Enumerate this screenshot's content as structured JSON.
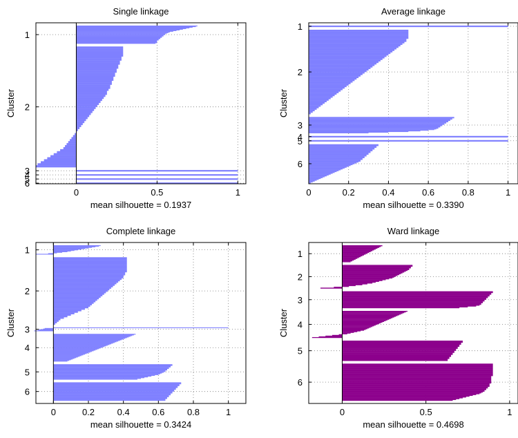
{
  "chart_data": [
    {
      "type": "bar",
      "orientation": "horizontal",
      "title": "Single linkage",
      "xlabel": "mean silhouette = 0.1937",
      "ylabel": "Cluster",
      "xlim": [
        -0.25,
        1.05
      ],
      "xticks": [
        0,
        0.5,
        1
      ],
      "xtick_labels": [
        "0",
        "0.5",
        "1"
      ],
      "grid": true,
      "bar_color": "#7f80ff",
      "clusters": [
        {
          "label": "1",
          "count": 27,
          "values_sorted": [
            0.75,
            0.74,
            0.72,
            0.7,
            0.68,
            0.66,
            0.64,
            0.62,
            0.6,
            0.58,
            0.57,
            0.56,
            0.55,
            0.55,
            0.54,
            0.54,
            0.53,
            0.53,
            0.52,
            0.52,
            0.51,
            0.51,
            0.5,
            0.5,
            0.5,
            0.5,
            0.49
          ]
        },
        {
          "label": "2",
          "count": 180,
          "values_sorted": [
            0.29,
            0.29,
            0.29,
            0.29,
            0.29,
            0.28,
            0.28,
            0.27,
            0.27,
            0.26,
            0.26,
            0.25,
            0.25,
            0.24,
            0.24,
            0.23,
            0.23,
            0.22,
            0.22,
            0.21,
            0.21,
            0.2,
            0.19,
            0.19,
            0.18,
            0.17,
            0.16,
            0.15,
            0.14,
            0.13,
            0.12,
            0.11,
            0.1,
            0.09,
            0.08,
            0.07,
            0.06,
            0.05,
            0.04,
            0.03,
            0.02,
            0.01,
            0.0,
            -0.01,
            -0.02,
            -0.03,
            -0.04,
            -0.05,
            -0.06,
            -0.07,
            -0.08,
            -0.1,
            -0.12,
            -0.14,
            -0.16,
            -0.18,
            -0.2,
            -0.22,
            -0.24,
            -0.25
          ]
        },
        {
          "label": "3",
          "count": 1,
          "values_sorted": [
            1.0
          ]
        },
        {
          "label": "4",
          "count": 1,
          "values_sorted": [
            1.0
          ]
        },
        {
          "label": "5",
          "count": 1,
          "values_sorted": [
            1.0
          ]
        },
        {
          "label": "6",
          "count": 1,
          "values_sorted": [
            1.0
          ]
        }
      ]
    },
    {
      "type": "bar",
      "orientation": "horizontal",
      "title": "Average linkage",
      "xlabel": "mean silhouette = 0.3390",
      "ylabel": "Cluster",
      "xlim": [
        0,
        1.05
      ],
      "xticks": [
        0,
        0.2,
        0.4,
        0.6,
        0.8,
        1
      ],
      "xtick_labels": [
        "0",
        "0.2",
        "0.4",
        "0.6",
        "0.8",
        "1"
      ],
      "grid": true,
      "bar_color": "#7f80ff",
      "clusters": [
        {
          "label": "1",
          "count": 1,
          "values_sorted": [
            1.0
          ]
        },
        {
          "label": "2",
          "count": 130,
          "values_sorted": [
            0.5,
            0.5,
            0.5,
            0.5,
            0.5,
            0.5,
            0.49,
            0.49,
            0.48,
            0.47,
            0.46,
            0.45,
            0.44,
            0.43,
            0.42,
            0.41,
            0.4,
            0.39,
            0.38,
            0.37,
            0.36,
            0.35,
            0.34,
            0.33,
            0.32,
            0.31,
            0.3,
            0.29,
            0.28,
            0.27,
            0.26,
            0.25,
            0.24,
            0.23,
            0.22,
            0.21,
            0.2,
            0.19,
            0.18,
            0.17,
            0.16,
            0.15,
            0.14,
            0.13,
            0.12,
            0.11,
            0.1,
            0.09,
            0.08,
            0.07,
            0.06,
            0.05,
            0.04,
            0.03,
            0.02,
            0.01
          ]
        },
        {
          "label": "3",
          "count": 25,
          "values_sorted": [
            0.73,
            0.73,
            0.72,
            0.72,
            0.71,
            0.71,
            0.7,
            0.7,
            0.69,
            0.69,
            0.68,
            0.68,
            0.67,
            0.67,
            0.66,
            0.66,
            0.65,
            0.65,
            0.64,
            0.63,
            0.6,
            0.56,
            0.5,
            0.4,
            0.3
          ]
        },
        {
          "label": "4",
          "count": 1,
          "values_sorted": [
            1.0
          ]
        },
        {
          "label": "5",
          "count": 1,
          "values_sorted": [
            1.0
          ]
        },
        {
          "label": "6",
          "count": 60,
          "values_sorted": [
            0.35,
            0.35,
            0.34,
            0.34,
            0.33,
            0.33,
            0.32,
            0.32,
            0.31,
            0.31,
            0.3,
            0.3,
            0.29,
            0.29,
            0.28,
            0.28,
            0.27,
            0.27,
            0.26,
            0.26,
            0.25,
            0.24,
            0.23,
            0.22,
            0.21,
            0.2,
            0.19,
            0.18,
            0.17,
            0.16,
            0.15,
            0.14,
            0.13,
            0.12,
            0.11,
            0.1,
            0.09,
            0.08,
            0.07,
            0.06,
            0.05,
            0.04,
            0.03,
            0.02,
            0.01
          ]
        }
      ]
    },
    {
      "type": "bar",
      "orientation": "horizontal",
      "title": "Complete linkage",
      "xlabel": "mean silhouette = 0.3424",
      "ylabel": "Cluster",
      "xlim": [
        -0.1,
        1.1
      ],
      "xticks": [
        0,
        0.2,
        0.4,
        0.6,
        0.8,
        1
      ],
      "xtick_labels": [
        "0",
        "0.2",
        "0.4",
        "0.6",
        "0.8",
        "1"
      ],
      "grid": true,
      "bar_color": "#7f80ff",
      "clusters": [
        {
          "label": "1",
          "count": 15,
          "values_sorted": [
            0.27,
            0.26,
            0.24,
            0.22,
            0.2,
            0.18,
            0.16,
            0.14,
            0.12,
            0.1,
            0.08,
            0.05,
            0.02,
            -0.03,
            -0.1
          ]
        },
        {
          "label": "2",
          "count": 110,
          "values_sorted": [
            0.42,
            0.42,
            0.42,
            0.42,
            0.42,
            0.42,
            0.42,
            0.42,
            0.42,
            0.42,
            0.41,
            0.41,
            0.4,
            0.4,
            0.39,
            0.38,
            0.37,
            0.36,
            0.35,
            0.34,
            0.33,
            0.32,
            0.31,
            0.3,
            0.29,
            0.28,
            0.27,
            0.26,
            0.25,
            0.24,
            0.23,
            0.22,
            0.21,
            0.2,
            0.18,
            0.16,
            0.14,
            0.12,
            0.1,
            0.08,
            0.06,
            0.04,
            0.03,
            0.02,
            0.01
          ]
        },
        {
          "label": "3",
          "count": 6,
          "values_sorted": [
            1.0,
            -0.05,
            -0.06,
            -0.08,
            -0.09,
            -0.11
          ]
        },
        {
          "label": "4",
          "count": 45,
          "values_sorted": [
            0.47,
            0.46,
            0.45,
            0.44,
            0.43,
            0.42,
            0.41,
            0.4,
            0.39,
            0.38,
            0.37,
            0.36,
            0.35,
            0.34,
            0.33,
            0.32,
            0.31,
            0.3,
            0.29,
            0.28,
            0.27,
            0.26,
            0.25,
            0.24,
            0.23,
            0.22,
            0.21,
            0.2,
            0.19,
            0.18,
            0.17,
            0.16,
            0.15,
            0.14,
            0.13,
            0.12,
            0.11,
            0.1,
            0.09,
            0.08
          ]
        },
        {
          "label": "5",
          "count": 25,
          "values_sorted": [
            0.68,
            0.68,
            0.67,
            0.67,
            0.66,
            0.66,
            0.65,
            0.65,
            0.64,
            0.64,
            0.63,
            0.62,
            0.61,
            0.6,
            0.58,
            0.56,
            0.54,
            0.52,
            0.5,
            0.48
          ]
        },
        {
          "label": "6",
          "count": 30,
          "values_sorted": [
            0.73,
            0.73,
            0.72,
            0.72,
            0.71,
            0.71,
            0.7,
            0.7,
            0.69,
            0.69,
            0.68,
            0.68,
            0.67,
            0.67,
            0.66,
            0.66,
            0.65,
            0.65,
            0.64,
            0.64
          ]
        }
      ]
    },
    {
      "type": "bar",
      "orientation": "horizontal",
      "title": "Ward linkage",
      "xlabel": "mean silhouette = 0.4698",
      "ylabel": "Cluster",
      "xlim": [
        -0.2,
        1.05
      ],
      "xticks": [
        0,
        0.5,
        1
      ],
      "xtick_labels": [
        "0",
        "0.5",
        "1"
      ],
      "grid": true,
      "bar_color": "#8c008c",
      "clusters": [
        {
          "label": "1",
          "count": 25,
          "values_sorted": [
            0.24,
            0.23,
            0.22,
            0.21,
            0.2,
            0.19,
            0.18,
            0.17,
            0.16,
            0.15,
            0.14,
            0.13,
            0.12,
            0.11,
            0.1,
            0.09,
            0.08,
            0.07,
            0.06,
            0.05
          ]
        },
        {
          "label": "2",
          "count": 35,
          "values_sorted": [
            0.42,
            0.42,
            0.41,
            0.41,
            0.4,
            0.4,
            0.39,
            0.38,
            0.37,
            0.36,
            0.35,
            0.34,
            0.33,
            0.32,
            0.31,
            0.3,
            0.28,
            0.26,
            0.24,
            0.22,
            0.2,
            0.18,
            0.15,
            0.12,
            0.08,
            0.04,
            -0.05,
            -0.13
          ]
        },
        {
          "label": "3",
          "count": 25,
          "values_sorted": [
            0.9,
            0.9,
            0.89,
            0.89,
            0.88,
            0.88,
            0.87,
            0.87,
            0.86,
            0.86,
            0.85,
            0.85,
            0.84,
            0.84,
            0.83,
            0.83,
            0.82,
            0.8,
            0.75,
            0.7
          ]
        },
        {
          "label": "4",
          "count": 40,
          "values_sorted": [
            0.39,
            0.38,
            0.37,
            0.36,
            0.35,
            0.34,
            0.33,
            0.32,
            0.31,
            0.3,
            0.29,
            0.28,
            0.27,
            0.26,
            0.25,
            0.24,
            0.23,
            0.22,
            0.21,
            0.2,
            0.19,
            0.18,
            0.17,
            0.16,
            0.15,
            0.14,
            0.13,
            0.11,
            0.09,
            0.07,
            0.05,
            0.03,
            -0.02,
            -0.06,
            -0.1,
            -0.14,
            -0.18
          ]
        },
        {
          "label": "5",
          "count": 30,
          "values_sorted": [
            0.72,
            0.72,
            0.71,
            0.71,
            0.7,
            0.7,
            0.69,
            0.69,
            0.68,
            0.68,
            0.67,
            0.67,
            0.66,
            0.66,
            0.65,
            0.65,
            0.64,
            0.64,
            0.63,
            0.63
          ]
        },
        {
          "label": "6",
          "count": 55,
          "values_sorted": [
            0.9,
            0.9,
            0.9,
            0.9,
            0.9,
            0.9,
            0.9,
            0.9,
            0.9,
            0.9,
            0.9,
            0.9,
            0.9,
            0.9,
            0.9,
            0.89,
            0.89,
            0.89,
            0.89,
            0.89,
            0.89,
            0.89,
            0.89,
            0.89,
            0.88,
            0.88,
            0.88,
            0.88,
            0.87,
            0.87,
            0.86,
            0.86,
            0.85,
            0.85,
            0.84,
            0.83,
            0.82,
            0.8,
            0.78,
            0.76,
            0.74,
            0.72,
            0.7,
            0.68,
            0.66
          ]
        }
      ]
    }
  ]
}
